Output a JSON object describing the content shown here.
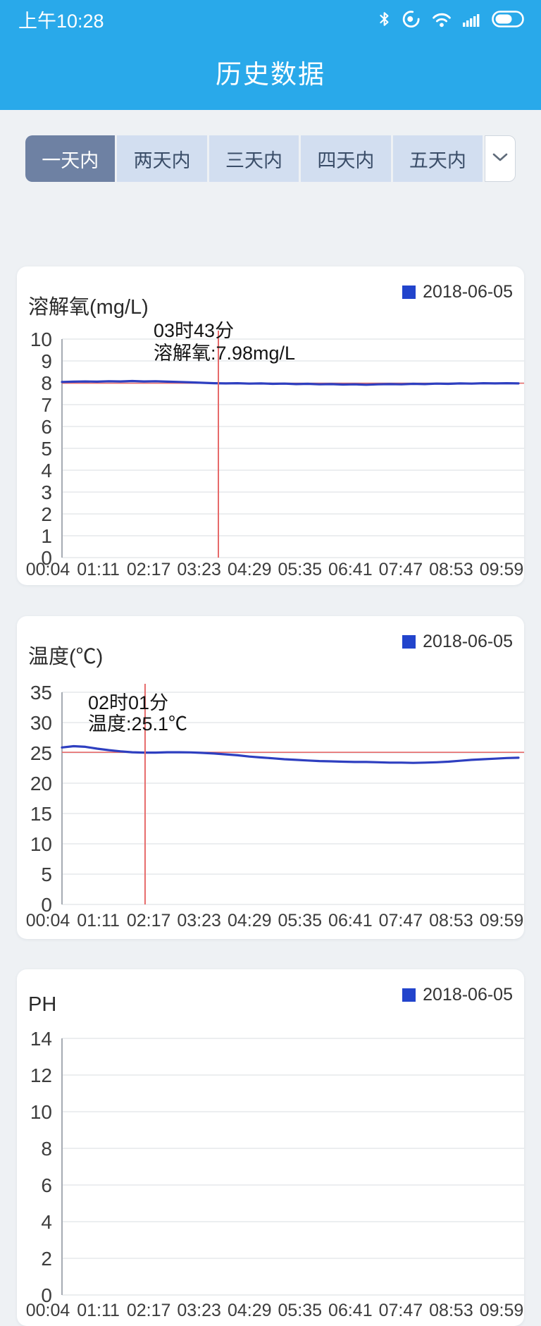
{
  "status_bar": {
    "time": "上午10:28"
  },
  "header": {
    "title": "历史数据"
  },
  "tabs": {
    "items": [
      {
        "label": "一天内",
        "selected": true
      },
      {
        "label": "两天内",
        "selected": false
      },
      {
        "label": "三天内",
        "selected": false
      },
      {
        "label": "四天内",
        "selected": false
      },
      {
        "label": "五天内",
        "selected": false
      }
    ]
  },
  "colors": {
    "app_blue": "#29a9ea",
    "selected_tab": "#6e81a3",
    "tab_bg": "#d2def0",
    "legend_blue": "#2244cc",
    "line_blue": "#2e3fc0",
    "crosshair_red": "#e66a6a"
  },
  "chart_data": [
    {
      "type": "line",
      "title": "溶解氧(mg/L)",
      "legend": [
        "2018-06-05"
      ],
      "legend_color": "#2244cc",
      "line_color": "#2e3fc0",
      "ylim": [
        0,
        10
      ],
      "y_ticks": [
        10,
        9,
        8,
        7,
        6,
        5,
        4,
        3,
        2,
        1,
        0
      ],
      "x_ticks": [
        "00:04",
        "01:11",
        "02:17",
        "03:23",
        "04:29",
        "05:35",
        "06:41",
        "07:47",
        "08:53",
        "09:59"
      ],
      "values": [
        8.04,
        8.05,
        8.06,
        8.05,
        8.07,
        8.06,
        8.08,
        8.06,
        8.07,
        8.05,
        8.04,
        8.02,
        8.0,
        7.98,
        7.97,
        7.98,
        7.96,
        7.97,
        7.95,
        7.96,
        7.94,
        7.95,
        7.93,
        7.94,
        7.92,
        7.93,
        7.91,
        7.93,
        7.94,
        7.93,
        7.95,
        7.94,
        7.96,
        7.95,
        7.97,
        7.96,
        7.98,
        7.97,
        7.98,
        7.97
      ],
      "crosshair": {
        "x_frac": 0.3426,
        "value": 7.98,
        "tooltip": [
          "03时43分",
          "溶解氧:7.98mg/L"
        ]
      }
    },
    {
      "type": "line",
      "title": "温度(℃)",
      "legend": [
        "2018-06-05"
      ],
      "legend_color": "#2244cc",
      "line_color": "#2e3fc0",
      "ylim": [
        0,
        35
      ],
      "y_ticks": [
        35,
        30,
        25,
        20,
        15,
        10,
        5,
        0
      ],
      "x_ticks": [
        "00:04",
        "01:11",
        "02:17",
        "03:23",
        "04:29",
        "05:35",
        "06:41",
        "07:47",
        "08:53",
        "09:59"
      ],
      "values": [
        25.9,
        26.1,
        26.0,
        25.7,
        25.45,
        25.25,
        25.1,
        25.05,
        25.05,
        25.1,
        25.1,
        25.08,
        25.0,
        24.9,
        24.75,
        24.6,
        24.4,
        24.25,
        24.1,
        23.95,
        23.85,
        23.75,
        23.65,
        23.6,
        23.55,
        23.5,
        23.5,
        23.45,
        23.4,
        23.4,
        23.35,
        23.4,
        23.45,
        23.55,
        23.7,
        23.85,
        23.95,
        24.05,
        24.15,
        24.2
      ],
      "crosshair": {
        "x_frac": 0.182,
        "value": 25.1,
        "tooltip": [
          "02时01分",
          "温度:25.1℃"
        ]
      }
    },
    {
      "type": "line",
      "title": "PH",
      "legend": [
        "2018-06-05"
      ],
      "legend_color": "#2244cc",
      "line_color": "#2e3fc0",
      "ylim": [
        0,
        14
      ],
      "y_ticks": [
        14,
        12,
        10,
        8,
        6,
        4,
        2,
        0
      ],
      "x_ticks": [
        "00:04",
        "01:11",
        "02:17",
        "03:23",
        "04:29",
        "05:35",
        "06:41",
        "07:47",
        "08:53",
        "09:59"
      ],
      "values": [],
      "crosshair": null
    }
  ]
}
